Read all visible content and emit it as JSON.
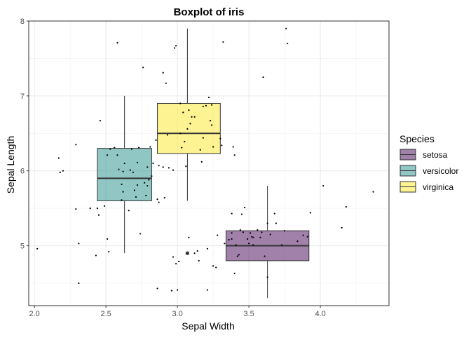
{
  "chart_data": {
    "type": "boxplot",
    "title": "Boxplot of iris",
    "xlabel": "Sepal Width",
    "ylabel": "Sepal Length",
    "xlim": [
      1.96,
      4.48
    ],
    "ylim": [
      4.2,
      8.0
    ],
    "xticks": [
      2.0,
      2.5,
      3.0,
      3.5,
      4.0
    ],
    "yticks": [
      5,
      6,
      7,
      8
    ],
    "x_tick_labels": [
      "2.0",
      "2.5",
      "3.0",
      "3.5",
      "4.0"
    ],
    "y_tick_labels": [
      "5",
      "6",
      "7",
      "8"
    ],
    "grid": true,
    "legend": {
      "title": "Species",
      "position": "right"
    },
    "series": [
      {
        "name": "setosa",
        "color": "#440154",
        "x_center": 3.63,
        "box": {
          "xmin": 3.34,
          "xmax": 3.92,
          "q1": 4.8,
          "median": 5.0,
          "q3": 5.2,
          "whisker_low": 4.3,
          "whisker_high": 5.8
        },
        "outliers": []
      },
      {
        "name": "versicolor",
        "color": "#21908C",
        "x_center": 2.63,
        "box": {
          "xmin": 2.44,
          "xmax": 2.82,
          "q1": 5.6,
          "median": 5.9,
          "q3": 6.3,
          "whisker_low": 4.9,
          "whisker_high": 7.0
        },
        "outliers": []
      },
      {
        "name": "virginica",
        "color": "#FDE725",
        "x_center": 3.07,
        "box": {
          "xmin": 2.86,
          "xmax": 3.3,
          "q1": 6.23,
          "median": 6.5,
          "q3": 6.9,
          "whisker_low": 5.6,
          "whisker_high": 7.9
        },
        "outliers": [
          {
            "x": 3.07,
            "y": 4.9
          }
        ]
      }
    ],
    "points": [
      [
        2.02,
        4.96
      ],
      [
        2.17,
        6.17
      ],
      [
        2.18,
        5.98
      ],
      [
        2.2,
        6.0
      ],
      [
        2.29,
        6.35
      ],
      [
        2.29,
        5.49
      ],
      [
        2.31,
        5.03
      ],
      [
        2.31,
        4.5
      ],
      [
        2.39,
        5.5
      ],
      [
        2.44,
        5.5
      ],
      [
        2.45,
        5.41
      ],
      [
        2.43,
        4.87
      ],
      [
        2.46,
        6.67
      ],
      [
        2.51,
        5.09
      ],
      [
        2.52,
        4.92
      ],
      [
        2.49,
        5.53
      ],
      [
        2.51,
        6.21
      ],
      [
        2.53,
        6.29
      ],
      [
        2.56,
        6.31
      ],
      [
        2.58,
        7.71
      ],
      [
        2.58,
        6.21
      ],
      [
        2.59,
        6.02
      ],
      [
        2.61,
        5.82
      ],
      [
        2.61,
        5.61
      ],
      [
        2.62,
        5.99
      ],
      [
        2.62,
        5.72
      ],
      [
        2.63,
        6.1
      ],
      [
        2.66,
        5.47
      ],
      [
        2.67,
        6.01
      ],
      [
        2.68,
        6.29
      ],
      [
        2.69,
        5.98
      ],
      [
        2.7,
        5.74
      ],
      [
        2.71,
        5.65
      ],
      [
        2.72,
        6.11
      ],
      [
        2.72,
        5.81
      ],
      [
        2.73,
        6.31
      ],
      [
        2.74,
        5.16
      ],
      [
        2.76,
        7.38
      ],
      [
        2.77,
        5.84
      ],
      [
        2.78,
        5.67
      ],
      [
        2.79,
        6.05
      ],
      [
        2.79,
        5.8
      ],
      [
        2.8,
        5.88
      ],
      [
        2.81,
        6.32
      ],
      [
        2.82,
        5.93
      ],
      [
        2.83,
        6.1
      ],
      [
        2.85,
        6.41
      ],
      [
        2.86,
        5.62
      ],
      [
        2.86,
        4.43
      ],
      [
        2.87,
        5.58
      ],
      [
        2.87,
        6.07
      ],
      [
        2.9,
        7.31
      ],
      [
        2.9,
        6.05
      ],
      [
        2.91,
        5.64
      ],
      [
        2.92,
        7.17
      ],
      [
        2.93,
        6.48
      ],
      [
        2.94,
        6.04
      ],
      [
        2.96,
        4.4
      ],
      [
        2.97,
        4.85
      ],
      [
        2.97,
        6.01
      ],
      [
        2.98,
        7.64
      ],
      [
        2.99,
        7.67
      ],
      [
        2.99,
        4.76
      ],
      [
        3.0,
        4.41
      ],
      [
        3.01,
        4.79
      ],
      [
        3.02,
        6.9
      ],
      [
        3.02,
        6.5
      ],
      [
        3.03,
        6.31
      ],
      [
        3.04,
        6.78
      ],
      [
        3.05,
        6.39
      ],
      [
        3.06,
        6.06
      ],
      [
        3.07,
        6.56
      ],
      [
        3.08,
        6.81
      ],
      [
        3.08,
        5.11
      ],
      [
        3.09,
        6.63
      ],
      [
        3.1,
        6.72
      ],
      [
        3.12,
        6.72
      ],
      [
        3.12,
        4.9
      ],
      [
        3.14,
        4.93
      ],
      [
        3.15,
        4.8
      ],
      [
        3.16,
        6.28
      ],
      [
        3.17,
        6.12
      ],
      [
        3.18,
        6.44
      ],
      [
        3.18,
        6.86
      ],
      [
        3.2,
        6.87
      ],
      [
        3.21,
        4.41
      ],
      [
        3.21,
        4.96
      ],
      [
        3.22,
        6.98
      ],
      [
        3.23,
        6.67
      ],
      [
        3.24,
        6.61
      ],
      [
        3.24,
        6.88
      ],
      [
        3.25,
        6.32
      ],
      [
        3.25,
        4.73
      ],
      [
        3.27,
        4.71
      ],
      [
        3.28,
        5.14
      ],
      [
        3.3,
        6.43
      ],
      [
        3.31,
        6.34
      ],
      [
        3.32,
        7.72
      ],
      [
        3.33,
        5.03
      ],
      [
        3.36,
        5.08
      ],
      [
        3.38,
        5.43
      ],
      [
        3.38,
        5.17
      ],
      [
        3.38,
        5.09
      ],
      [
        3.39,
        6.32
      ],
      [
        3.4,
        6.21
      ],
      [
        3.4,
        4.63
      ],
      [
        3.41,
        5.01
      ],
      [
        3.42,
        4.86
      ],
      [
        3.43,
        4.88
      ],
      [
        3.44,
        5.21
      ],
      [
        3.45,
        5.42
      ],
      [
        3.46,
        5.18
      ],
      [
        3.47,
        5.51
      ],
      [
        3.49,
        5.09
      ],
      [
        3.5,
        5.03
      ],
      [
        3.51,
        5.17
      ],
      [
        3.52,
        5.12
      ],
      [
        3.53,
        5.11
      ],
      [
        3.53,
        5.01
      ],
      [
        3.56,
        5.21
      ],
      [
        3.58,
        5.11
      ],
      [
        3.59,
        5.18
      ],
      [
        3.61,
        4.86
      ],
      [
        3.6,
        7.25
      ],
      [
        3.63,
        5.3
      ],
      [
        3.63,
        4.58
      ],
      [
        3.65,
        5.15
      ],
      [
        3.68,
        5.43
      ],
      [
        3.69,
        5.3
      ],
      [
        3.73,
        5.01
      ],
      [
        3.75,
        5.2
      ],
      [
        3.76,
        7.9
      ],
      [
        3.77,
        7.7
      ],
      [
        3.84,
        5.06
      ],
      [
        3.88,
        5.14
      ],
      [
        3.91,
        5.12
      ],
      [
        3.93,
        5.44
      ],
      [
        4.02,
        5.8
      ],
      [
        4.15,
        5.24
      ],
      [
        4.18,
        5.52
      ],
      [
        4.37,
        5.72
      ]
    ]
  }
}
